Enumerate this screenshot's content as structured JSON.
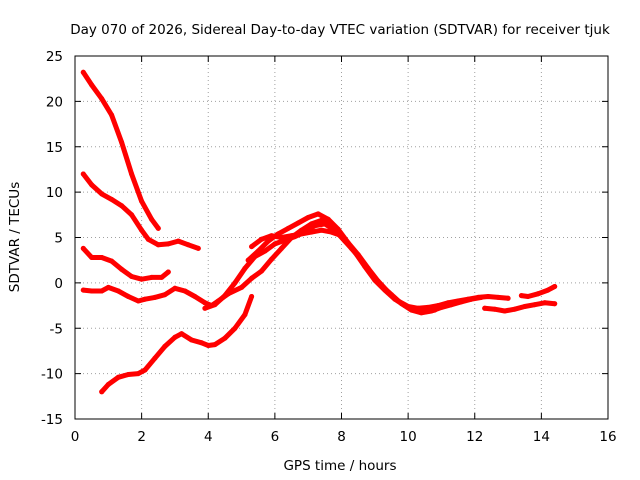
{
  "chart_data": {
    "type": "scatter",
    "title": "Day 070 of 2026, Sidereal Day-to-day VTEC variation (SDTVAR) for receiver tjuk",
    "xlabel": "GPS time / hours",
    "ylabel": "SDTVAR / TECUs",
    "xlim": [
      0,
      16
    ],
    "ylim": [
      -15,
      25
    ],
    "xticks": [
      0,
      2,
      4,
      6,
      8,
      10,
      12,
      14,
      16
    ],
    "yticks": [
      -15,
      -10,
      -5,
      0,
      5,
      10,
      15,
      20,
      25
    ],
    "xtick_labels": [
      "0",
      "2",
      "4",
      "6",
      "8",
      "10",
      "12",
      "14",
      "16"
    ],
    "ytick_labels": [
      "-15",
      "-10",
      "-5",
      "0",
      "5",
      "10",
      "15",
      "20",
      "25"
    ],
    "grid": true,
    "color": "#ff0000",
    "series": [
      {
        "name": "track-1",
        "x": [
          0.25,
          0.5,
          0.8,
          1.1,
          1.4,
          1.7,
          2.0,
          2.3,
          2.5
        ],
        "y": [
          23.2,
          21.8,
          20.3,
          18.5,
          15.5,
          12.0,
          9.0,
          7.0,
          6.0
        ]
      },
      {
        "name": "track-2",
        "x": [
          0.25,
          0.5,
          0.8,
          1.1,
          1.4,
          1.7,
          2.0,
          2.2,
          2.5,
          2.8,
          3.1,
          3.4,
          3.7
        ],
        "y": [
          12.0,
          10.8,
          9.8,
          9.2,
          8.5,
          7.5,
          5.8,
          4.8,
          4.2,
          4.3,
          4.6,
          4.2,
          3.8
        ]
      },
      {
        "name": "track-3",
        "x": [
          0.25,
          0.5,
          0.8,
          1.1,
          1.4,
          1.7,
          2.0,
          2.3,
          2.6,
          2.8
        ],
        "y": [
          3.8,
          2.8,
          2.8,
          2.4,
          1.5,
          0.7,
          0.4,
          0.6,
          0.6,
          1.2
        ]
      },
      {
        "name": "track-4",
        "x": [
          0.25,
          0.5,
          0.8,
          1.0,
          1.3,
          1.6,
          1.9,
          2.1,
          2.4,
          2.7,
          3.0,
          3.3,
          3.6,
          3.9,
          4.1,
          4.3,
          4.6,
          5.0,
          5.3,
          5.6,
          5.9,
          6.2,
          6.5,
          6.8,
          7.1,
          7.4,
          7.7,
          8.0,
          8.3,
          8.6,
          8.9,
          9.2,
          9.5,
          9.8,
          10.1,
          10.4,
          10.7,
          11.0,
          11.3,
          11.6,
          11.9,
          12.2
        ],
        "y": [
          -0.8,
          -0.9,
          -0.9,
          -0.5,
          -0.9,
          -1.5,
          -2.0,
          -1.8,
          -1.6,
          -1.3,
          -0.6,
          -0.9,
          -1.5,
          -2.2,
          -2.5,
          -2.0,
          -1.2,
          -0.5,
          0.5,
          1.3,
          2.6,
          3.8,
          5.0,
          5.8,
          6.5,
          6.9,
          6.4,
          5.2,
          3.8,
          2.5,
          0.9,
          -0.3,
          -1.3,
          -2.3,
          -3.0,
          -3.3,
          -3.1,
          -2.7,
          -2.4,
          -2.1,
          -1.8,
          -1.6
        ]
      },
      {
        "name": "track-5",
        "x": [
          0.8,
          1.0,
          1.3,
          1.6,
          1.9,
          2.1,
          2.4,
          2.7,
          3.0,
          3.2,
          3.5,
          3.8,
          4.0,
          4.2,
          4.5,
          4.8,
          5.1,
          5.3
        ],
        "y": [
          -12.0,
          -11.2,
          -10.4,
          -10.1,
          -10.0,
          -9.6,
          -8.3,
          -7.0,
          -6.0,
          -5.6,
          -6.3,
          -6.6,
          -6.9,
          -6.8,
          -6.1,
          -5.0,
          -3.5,
          -1.5
        ]
      },
      {
        "name": "track-6",
        "x": [
          3.9,
          4.2,
          4.5,
          4.8,
          5.1,
          5.4,
          5.7,
          6.0,
          6.3,
          6.6,
          6.9,
          7.2,
          7.5,
          7.8,
          8.1,
          8.4,
          8.7,
          9.0,
          9.3,
          9.6,
          9.9,
          10.2,
          10.5,
          10.8
        ],
        "y": [
          -2.8,
          -2.4,
          -1.4,
          0.0,
          1.6,
          2.9,
          3.5,
          4.3,
          4.7,
          5.1,
          5.6,
          6.3,
          6.5,
          5.8,
          4.6,
          3.4,
          1.8,
          0.3,
          -0.8,
          -1.8,
          -2.5,
          -2.9,
          -3.2,
          -3.0
        ]
      },
      {
        "name": "track-7",
        "x": [
          5.3,
          5.6,
          5.9,
          6.2,
          6.5,
          6.8,
          7.1,
          7.4,
          7.7,
          8.0
        ],
        "y": [
          4.0,
          4.8,
          5.2,
          5.0,
          5.2,
          5.4,
          5.6,
          5.8,
          5.6,
          5.2
        ]
      },
      {
        "name": "track-8",
        "x": [
          5.2,
          5.5,
          5.8,
          6.1,
          6.4,
          6.7,
          7.0,
          7.3,
          7.6,
          7.9,
          8.2,
          8.5,
          8.8,
          9.1,
          9.4,
          9.7,
          10.0,
          10.3,
          10.6,
          10.9,
          11.2,
          11.5,
          11.8,
          12.1,
          12.4,
          12.7,
          13.0
        ],
        "y": [
          2.5,
          3.5,
          4.6,
          5.4,
          6.0,
          6.6,
          7.2,
          7.6,
          7.0,
          5.9,
          4.4,
          3.1,
          1.6,
          0.2,
          -1.0,
          -2.0,
          -2.6,
          -2.8,
          -2.7,
          -2.5,
          -2.2,
          -2.0,
          -1.8,
          -1.6,
          -1.5,
          -1.6,
          -1.7
        ]
      },
      {
        "name": "track-9",
        "x": [
          12.3,
          12.6,
          12.9,
          13.2,
          13.5,
          13.8,
          14.1,
          14.4
        ],
        "y": [
          -2.8,
          -2.9,
          -3.1,
          -2.9,
          -2.6,
          -2.4,
          -2.2,
          -2.3
        ]
      },
      {
        "name": "track-10",
        "x": [
          13.4,
          13.6,
          13.9,
          14.2,
          14.4
        ],
        "y": [
          -1.4,
          -1.5,
          -1.2,
          -0.8,
          -0.4
        ]
      }
    ]
  }
}
